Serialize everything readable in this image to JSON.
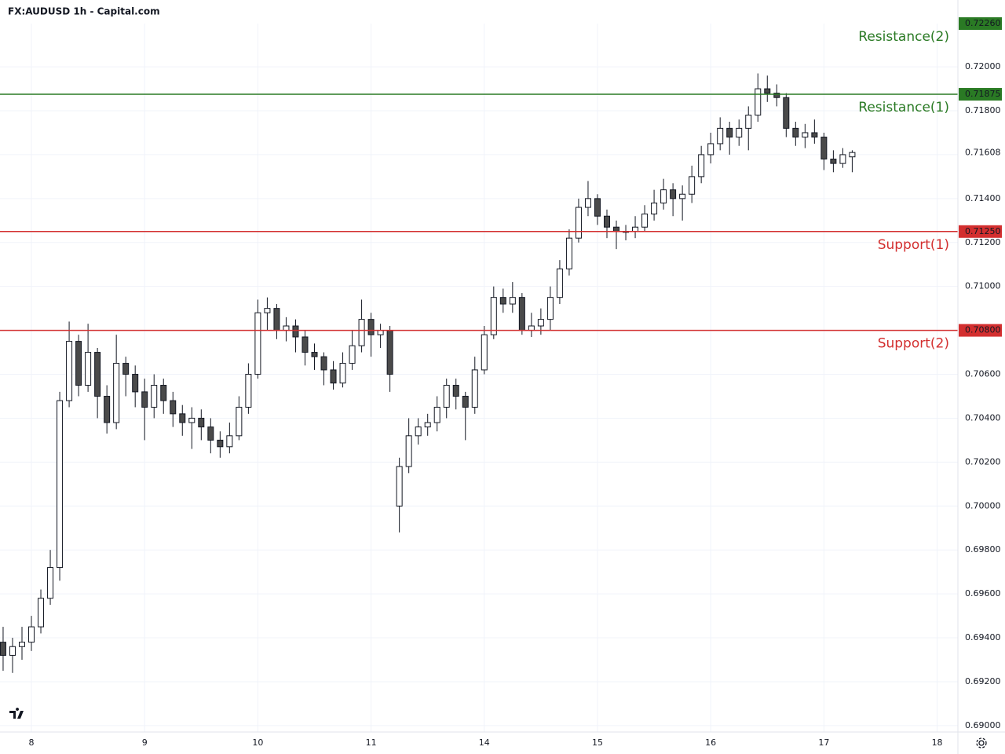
{
  "chart_data": {
    "type": "candlestick",
    "title": "FX:AUDUSD 1h - Capital.com",
    "x": [
      -6,
      -4,
      -2,
      0,
      2,
      4,
      6,
      8,
      10,
      12,
      14,
      16,
      18,
      20,
      22,
      24,
      26,
      28,
      30,
      32,
      34,
      36,
      38,
      40,
      42,
      44,
      46,
      48,
      50,
      52,
      54,
      56,
      58,
      60,
      62,
      64,
      66,
      68,
      70,
      72,
      74,
      76,
      78,
      80,
      82,
      84,
      86,
      88,
      90,
      92,
      94,
      96,
      98,
      100,
      102,
      104,
      106,
      108,
      110,
      112,
      114,
      116,
      118,
      120,
      122,
      124,
      126,
      128,
      130,
      132,
      134,
      136,
      138,
      140,
      142,
      144,
      146,
      148,
      150,
      152,
      154,
      156,
      158,
      160,
      162,
      164,
      166,
      168,
      170,
      172,
      174
    ],
    "open": [
      0.6938,
      0.6932,
      0.6936,
      0.6938,
      0.6945,
      0.6958,
      0.6972,
      0.7048,
      0.7075,
      0.7055,
      0.707,
      0.705,
      0.7038,
      0.7065,
      0.706,
      0.7052,
      0.7045,
      0.7055,
      0.7048,
      0.7042,
      0.7038,
      0.704,
      0.7036,
      0.703,
      0.7027,
      0.7032,
      0.7045,
      0.706,
      0.7088,
      0.709,
      0.708,
      0.7082,
      0.7077,
      0.707,
      0.7068,
      0.7062,
      0.7056,
      0.7065,
      0.7073,
      0.7085,
      0.7078,
      0.708,
      0.7,
      0.7018,
      0.7032,
      0.7036,
      0.7038,
      0.7045,
      0.7055,
      0.705,
      0.7045,
      0.7062,
      0.7078,
      0.7095,
      0.7092,
      0.7095,
      0.708,
      0.7082,
      0.7085,
      0.7095,
      0.7108,
      0.7122,
      0.7136,
      0.714,
      0.7132,
      0.7127,
      0.7125,
      0.7125,
      0.7127,
      0.7133,
      0.7138,
      0.7144,
      0.714,
      0.7142,
      0.715,
      0.716,
      0.7165,
      0.7172,
      0.7168,
      0.7172,
      0.7178,
      0.719,
      0.7188,
      0.7186,
      0.7172,
      0.7168,
      0.717,
      0.7168,
      0.7158,
      0.7156,
      0.7159
    ],
    "high": [
      0.6945,
      0.694,
      0.6945,
      0.695,
      0.6962,
      0.698,
      0.7052,
      0.7084,
      0.7078,
      0.7083,
      0.7072,
      0.7055,
      0.7078,
      0.7068,
      0.7064,
      0.7058,
      0.706,
      0.7058,
      0.7052,
      0.7046,
      0.7045,
      0.7044,
      0.704,
      0.7034,
      0.7038,
      0.705,
      0.7065,
      0.7094,
      0.7095,
      0.7092,
      0.7086,
      0.7085,
      0.708,
      0.7074,
      0.707,
      0.7066,
      0.707,
      0.708,
      0.7094,
      0.7088,
      0.7083,
      0.7082,
      0.7022,
      0.704,
      0.704,
      0.7042,
      0.705,
      0.7058,
      0.7058,
      0.7052,
      0.7068,
      0.7082,
      0.71,
      0.7099,
      0.7102,
      0.7097,
      0.7088,
      0.709,
      0.71,
      0.7112,
      0.7126,
      0.714,
      0.7148,
      0.7142,
      0.7135,
      0.713,
      0.7128,
      0.7132,
      0.7137,
      0.7144,
      0.7149,
      0.7147,
      0.7146,
      0.7155,
      0.7164,
      0.717,
      0.7177,
      0.7175,
      0.7176,
      0.7182,
      0.7197,
      0.7196,
      0.7192,
      0.7188,
      0.7175,
      0.7174,
      0.7176,
      0.717,
      0.7162,
      0.7163,
      0.7162
    ],
    "low": [
      0.6925,
      0.6924,
      0.693,
      0.6934,
      0.6942,
      0.6955,
      0.6966,
      0.7045,
      0.705,
      0.7052,
      0.704,
      0.7033,
      0.7035,
      0.705,
      0.7045,
      0.703,
      0.704,
      0.7042,
      0.7036,
      0.7032,
      0.7026,
      0.703,
      0.7024,
      0.7022,
      0.7024,
      0.703,
      0.7042,
      0.7058,
      0.708,
      0.7076,
      0.7075,
      0.707,
      0.7064,
      0.7062,
      0.7055,
      0.7053,
      0.7054,
      0.7062,
      0.707,
      0.7068,
      0.7072,
      0.7052,
      0.6988,
      0.7015,
      0.7028,
      0.7032,
      0.7034,
      0.704,
      0.7044,
      0.703,
      0.7042,
      0.706,
      0.7076,
      0.7088,
      0.7088,
      0.7078,
      0.7077,
      0.7078,
      0.708,
      0.7092,
      0.7105,
      0.712,
      0.7132,
      0.7128,
      0.7122,
      0.7117,
      0.7121,
      0.7122,
      0.7125,
      0.713,
      0.7135,
      0.7132,
      0.713,
      0.7138,
      0.7147,
      0.7156,
      0.7162,
      0.716,
      0.7164,
      0.7162,
      0.7175,
      0.7184,
      0.7182,
      0.7168,
      0.7164,
      0.7163,
      0.7165,
      0.7153,
      0.7152,
      0.7154,
      0.7152
    ],
    "close": [
      0.6932,
      0.6936,
      0.6938,
      0.6945,
      0.6958,
      0.6972,
      0.7048,
      0.7075,
      0.7055,
      0.707,
      0.705,
      0.7038,
      0.7065,
      0.706,
      0.7052,
      0.7045,
      0.7055,
      0.7048,
      0.7042,
      0.7038,
      0.704,
      0.7036,
      0.703,
      0.7027,
      0.7032,
      0.7045,
      0.706,
      0.7088,
      0.709,
      0.708,
      0.7082,
      0.7077,
      0.707,
      0.7068,
      0.7062,
      0.7056,
      0.7065,
      0.7073,
      0.7085,
      0.7078,
      0.708,
      0.706,
      0.7018,
      0.7032,
      0.7036,
      0.7038,
      0.7045,
      0.7055,
      0.705,
      0.7045,
      0.7062,
      0.7078,
      0.7095,
      0.7092,
      0.7095,
      0.708,
      0.7082,
      0.7085,
      0.7095,
      0.7108,
      0.7122,
      0.7136,
      0.714,
      0.7132,
      0.7127,
      0.7125,
      0.7125,
      0.7127,
      0.7133,
      0.7138,
      0.7144,
      0.714,
      0.7142,
      0.715,
      0.716,
      0.7165,
      0.7172,
      0.7168,
      0.7172,
      0.7178,
      0.719,
      0.7188,
      0.7186,
      0.7172,
      0.7168,
      0.717,
      0.7168,
      0.7158,
      0.7156,
      0.716,
      0.7161
    ],
    "up_color": "#ffffff",
    "down_color": "#4a4a4a",
    "xlim": [
      -6.66,
      196.4
    ],
    "xticks": [
      {
        "value": 0,
        "label": "8"
      },
      {
        "value": 24,
        "label": "9"
      },
      {
        "value": 48,
        "label": "10"
      },
      {
        "value": 72,
        "label": "11"
      },
      {
        "value": 96,
        "label": "14"
      },
      {
        "value": 120,
        "label": "15"
      },
      {
        "value": 144,
        "label": "16"
      },
      {
        "value": 168,
        "label": "17"
      },
      {
        "value": 192,
        "label": "18"
      }
    ],
    "ylim": [
      0.68971,
      0.72197
    ],
    "yticks": [
      {
        "value": 0.69,
        "label": "0.69000"
      },
      {
        "value": 0.692,
        "label": "0.69200"
      },
      {
        "value": 0.694,
        "label": "0.69400"
      },
      {
        "value": 0.696,
        "label": "0.69600"
      },
      {
        "value": 0.698,
        "label": "0.69800"
      },
      {
        "value": 0.7,
        "label": "0.70000"
      },
      {
        "value": 0.702,
        "label": "0.70200"
      },
      {
        "value": 0.704,
        "label": "0.70400"
      },
      {
        "value": 0.706,
        "label": "0.70600"
      },
      {
        "value": 0.708,
        "label": "0.70800"
      },
      {
        "value": 0.71,
        "label": "0.71000"
      },
      {
        "value": 0.712,
        "label": "0.71200"
      },
      {
        "value": 0.714,
        "label": "0.71400"
      },
      {
        "value": 0.716,
        "label": "0.71600"
      },
      {
        "value": 0.718,
        "label": "0.71800"
      },
      {
        "value": 0.72,
        "label": "0.72000"
      }
    ],
    "grid": true,
    "levels": [
      {
        "name": "Resistance(2)",
        "value": 0.7226,
        "label": "0.72260",
        "color": "#2a7a24"
      },
      {
        "name": "Resistance(1)",
        "value": 0.71875,
        "label": "0.71875",
        "color": "#2a7a24"
      },
      {
        "name": "Support(1)",
        "value": 0.7125,
        "label": "0.71250",
        "color": "#d32f2f"
      },
      {
        "name": "Support(2)",
        "value": 0.708,
        "label": "0.70800",
        "color": "#d32f2f"
      }
    ],
    "last_price": {
      "value": 0.71608,
      "label": "0.71608"
    }
  }
}
